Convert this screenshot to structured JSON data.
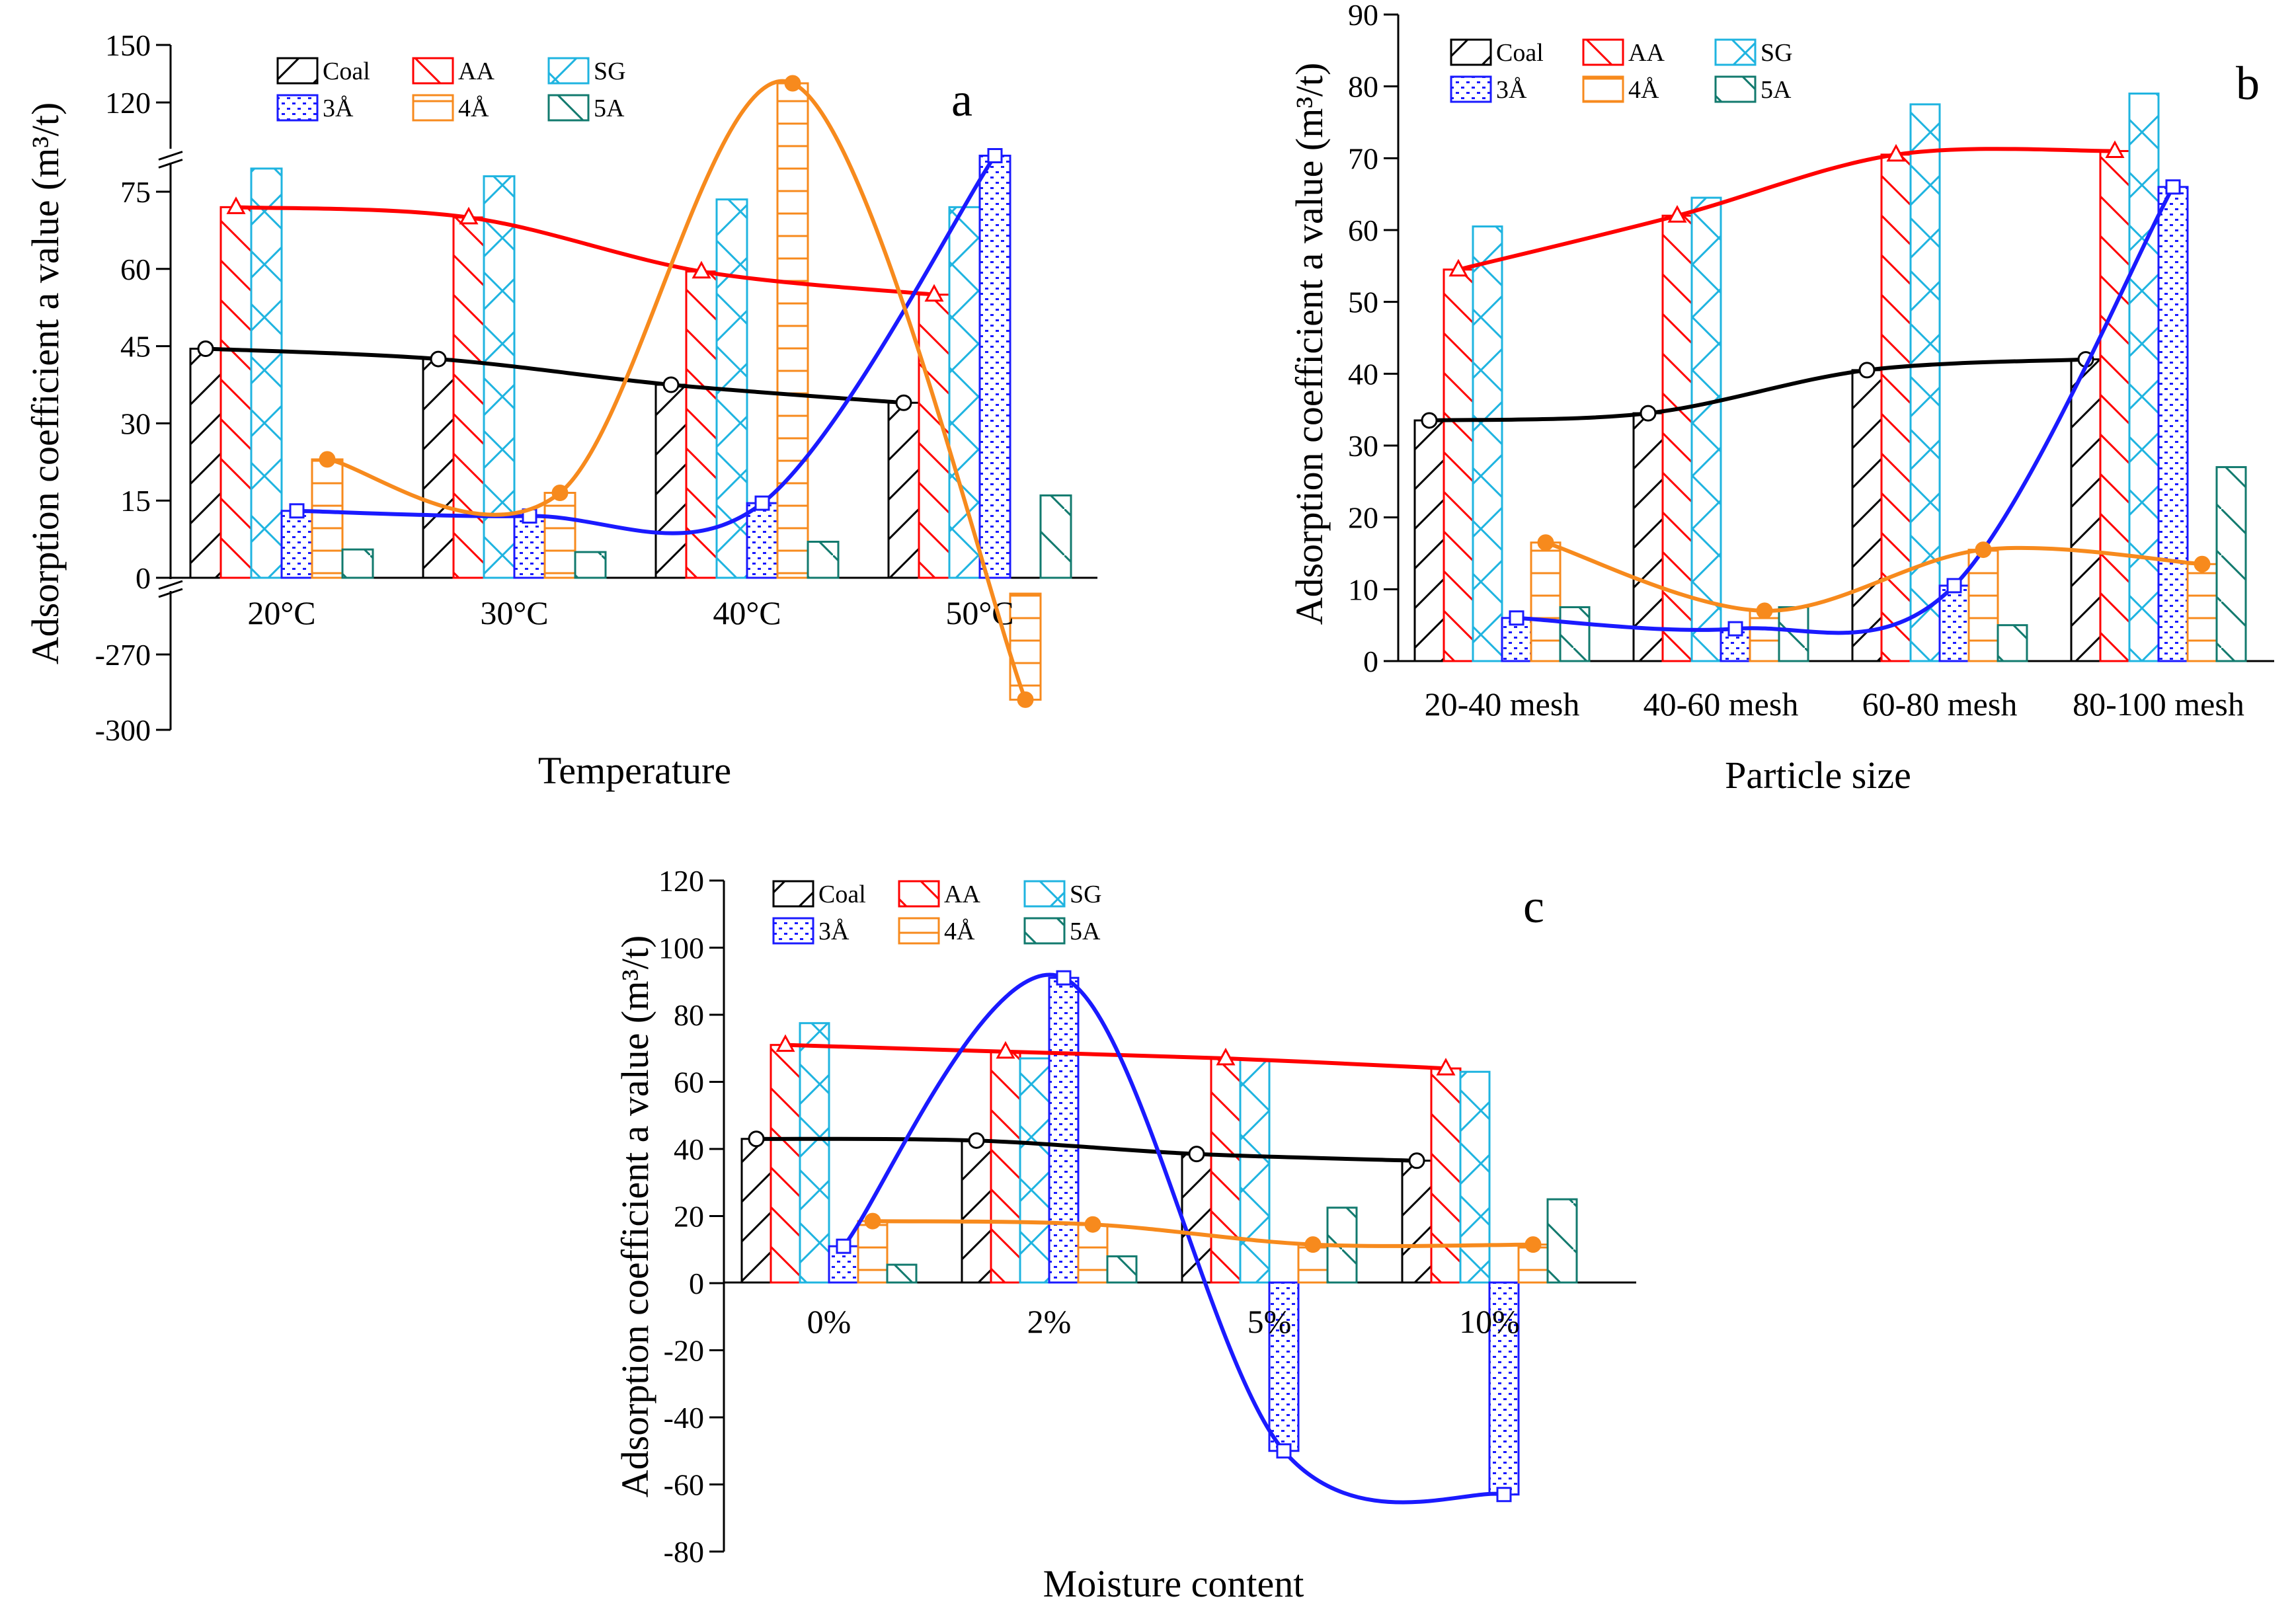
{
  "series_styles": [
    {
      "key": "coal",
      "label": "Coal",
      "color": "#000000",
      "marker": "circle"
    },
    {
      "key": "aa",
      "label": "AA",
      "color": "#ff0000",
      "marker": "triangle"
    },
    {
      "key": "sg",
      "label": "SG",
      "color": "#1fb4e0",
      "marker": "none"
    },
    {
      "key": "a3",
      "label": "3Å",
      "color": "#1a1aff",
      "marker": "square"
    },
    {
      "key": "a4",
      "label": "4Å",
      "color": "#f78a1d",
      "marker": "diamond"
    },
    {
      "key": "a5",
      "label": "5A",
      "color": "#127a6e",
      "marker": "none"
    }
  ],
  "chart_data": [
    {
      "type": "bar",
      "panel": "a",
      "xlabel": "Temperature",
      "ylabel": "Adsorption coefficient a value (m³/t)",
      "categories": [
        "20°C",
        "30°C",
        "40°C",
        "50°C"
      ],
      "broken_axis": true,
      "y_ticks_lower": [
        -300,
        -270
      ],
      "y_ticks_main": [
        0,
        15,
        30,
        45,
        60,
        75
      ],
      "y_ticks_upper": [
        120,
        150
      ],
      "lines_for": [
        "coal",
        "aa",
        "a3",
        "a4"
      ],
      "series": [
        {
          "key": "coal",
          "values": [
            44.5,
            42.5,
            37.5,
            34
          ]
        },
        {
          "key": "aa",
          "values": [
            72,
            70,
            59.5,
            55
          ]
        },
        {
          "key": "sg",
          "values": [
            79.5,
            78,
            73.5,
            72
          ]
        },
        {
          "key": "a3",
          "values": [
            13,
            12,
            14.5,
            82
          ]
        },
        {
          "key": "a4",
          "values": [
            23,
            16.5,
            130,
            -288
          ]
        },
        {
          "key": "a5",
          "values": [
            5.5,
            5,
            7,
            16
          ]
        }
      ]
    },
    {
      "type": "bar",
      "panel": "b",
      "xlabel": "Particle size",
      "ylabel": "Adsorption coefficient a value (m³/t)",
      "categories": [
        "20-40 mesh",
        "40-60 mesh",
        "60-80 mesh",
        "80-100 mesh"
      ],
      "ylim": [
        0,
        90
      ],
      "y_ticks": [
        0,
        10,
        20,
        30,
        40,
        50,
        60,
        70,
        80,
        90
      ],
      "lines_for": [
        "coal",
        "aa",
        "a3",
        "a4"
      ],
      "series": [
        {
          "key": "coal",
          "values": [
            33.5,
            34.5,
            40.5,
            42
          ]
        },
        {
          "key": "aa",
          "values": [
            54.5,
            62,
            70.5,
            71
          ]
        },
        {
          "key": "sg",
          "values": [
            60.5,
            64.5,
            77.5,
            79
          ]
        },
        {
          "key": "a3",
          "values": [
            6,
            4.5,
            10.5,
            66
          ]
        },
        {
          "key": "a4",
          "values": [
            16.5,
            7,
            15.5,
            13.5
          ]
        },
        {
          "key": "a5",
          "values": [
            7.5,
            7.5,
            5,
            27
          ]
        }
      ]
    },
    {
      "type": "bar",
      "panel": "c",
      "xlabel": "Moisture content",
      "ylabel": "Adsorption coefficient a value (m³/t)",
      "categories": [
        "0%",
        "2%",
        "5%",
        "10%"
      ],
      "ylim": [
        -80,
        120
      ],
      "y_ticks": [
        -80,
        -60,
        -40,
        -20,
        0,
        20,
        40,
        60,
        80,
        100,
        120
      ],
      "lines_for": [
        "coal",
        "aa",
        "a3",
        "a4"
      ],
      "series": [
        {
          "key": "coal",
          "values": [
            43,
            42.5,
            38.5,
            36.5
          ]
        },
        {
          "key": "aa",
          "values": [
            71,
            69,
            67,
            64
          ]
        },
        {
          "key": "sg",
          "values": [
            77.5,
            67,
            66.5,
            63
          ]
        },
        {
          "key": "a3",
          "values": [
            11,
            91,
            -50,
            -63
          ]
        },
        {
          "key": "a4",
          "values": [
            18.5,
            17.5,
            11.5,
            11.5
          ]
        },
        {
          "key": "a5",
          "values": [
            5.5,
            8,
            22.5,
            25
          ]
        }
      ]
    }
  ]
}
